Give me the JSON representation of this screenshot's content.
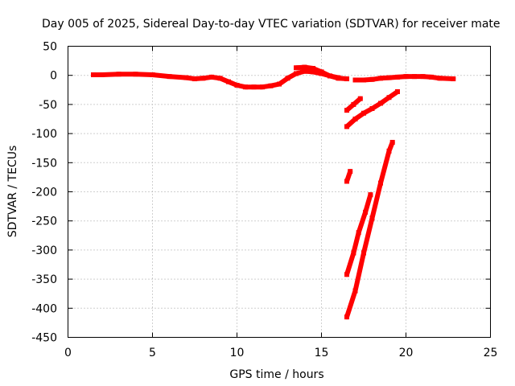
{
  "chart_data": {
    "type": "scatter",
    "title": "Day 005 of 2025, Sidereal Day-to-day VTEC variation (SDTVAR) for receiver mate",
    "xlabel": "GPS time / hours",
    "ylabel": "SDTVAR / TECUs",
    "xlim": [
      0,
      25
    ],
    "ylim": [
      -450,
      50
    ],
    "xticks": [
      0,
      5,
      10,
      15,
      20,
      25
    ],
    "yticks": [
      50,
      0,
      -50,
      -100,
      -150,
      -200,
      -250,
      -300,
      -350,
      -400,
      -450
    ],
    "grid": true,
    "series_color": "#ff0000",
    "series": [
      {
        "points": [
          [
            1.5,
            1
          ],
          [
            2,
            1
          ],
          [
            3,
            2
          ],
          [
            4,
            2
          ],
          [
            5,
            1
          ],
          [
            6,
            -2
          ],
          [
            7,
            -4
          ],
          [
            7.5,
            -6
          ],
          [
            8,
            -5
          ],
          [
            8.5,
            -3
          ],
          [
            9,
            -5
          ],
          [
            9.5,
            -11
          ],
          [
            10,
            -17
          ],
          [
            10.5,
            -20
          ],
          [
            11,
            -20
          ],
          [
            11.5,
            -20
          ],
          [
            12,
            -18
          ],
          [
            12.5,
            -15
          ],
          [
            13,
            -5
          ],
          [
            13.5,
            3
          ],
          [
            14,
            7
          ],
          [
            14.5,
            6
          ],
          [
            15,
            3
          ],
          [
            15.5,
            -1
          ],
          [
            16,
            -4
          ]
        ]
      },
      {
        "points": [
          [
            13.5,
            13
          ],
          [
            14,
            14
          ],
          [
            14.5,
            12
          ],
          [
            15,
            6
          ],
          [
            15.5,
            -1
          ],
          [
            16,
            -5
          ],
          [
            16.5,
            -6
          ]
        ]
      },
      {
        "points": [
          [
            17,
            -8
          ],
          [
            17.5,
            -8
          ],
          [
            18,
            -7
          ],
          [
            18.5,
            -5
          ],
          [
            19,
            -4
          ],
          [
            19.5,
            -3
          ],
          [
            20,
            -2
          ],
          [
            20.5,
            -2
          ],
          [
            21,
            -2
          ],
          [
            21.5,
            -3
          ],
          [
            22,
            -5
          ],
          [
            22.8,
            -6
          ]
        ]
      },
      {
        "points": [
          [
            16.5,
            -60
          ],
          [
            16.9,
            -50
          ],
          [
            17.3,
            -40
          ]
        ]
      },
      {
        "points": [
          [
            16.5,
            -88
          ],
          [
            17,
            -75
          ],
          [
            17.5,
            -65
          ],
          [
            18,
            -57
          ],
          [
            18.5,
            -48
          ],
          [
            19,
            -38
          ],
          [
            19.5,
            -28
          ]
        ]
      },
      {
        "points": [
          [
            16.5,
            -182
          ],
          [
            16.7,
            -165
          ]
        ]
      },
      {
        "points": [
          [
            16.5,
            -342
          ],
          [
            16.9,
            -305
          ],
          [
            17.2,
            -270
          ],
          [
            17.6,
            -235
          ],
          [
            17.9,
            -205
          ]
        ]
      },
      {
        "points": [
          [
            16.5,
            -415
          ],
          [
            17,
            -370
          ],
          [
            17.5,
            -305
          ],
          [
            18,
            -245
          ],
          [
            18.5,
            -185
          ],
          [
            19,
            -130
          ],
          [
            19.2,
            -115
          ]
        ]
      }
    ]
  }
}
